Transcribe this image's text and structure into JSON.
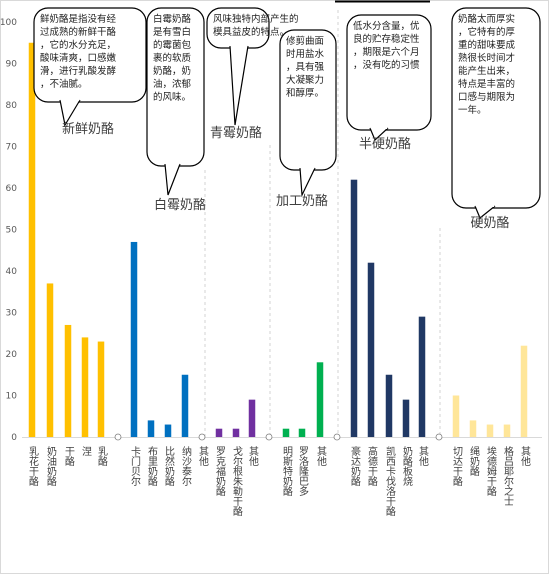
{
  "chart_data": {
    "type": "bar",
    "ylim": [
      0,
      100
    ],
    "yticks": [
      0,
      10,
      20,
      30,
      40,
      50,
      60,
      70,
      80,
      90,
      100
    ],
    "groups": [
      {
        "name": "新鲜奶酪",
        "color": "#FFC000",
        "callout": "鲜奶酪是指没有经过成熟的新鲜干酪，它的水分充足，酸味清爽，口感嫩滑，进行乳酸发酵，不油腻。",
        "categories": [
          "乳花干酪",
          "奶油奶酪",
          "干酪",
          "涅",
          "乳酪"
        ],
        "values": [
          95,
          37,
          27,
          24,
          23
        ]
      },
      {
        "name": "白霉奶酪",
        "color": "#0070C0",
        "callout": "白霉奶酪是有雪白的霉菌包裹的软质奶酪，奶油，浓郁的风味。",
        "categories": [
          "卡门贝尔",
          "布里奶酪",
          "比然奶酪",
          "纳沙泰尔",
          "其他"
        ],
        "values": [
          47,
          4,
          3,
          15,
          0
        ]
      },
      {
        "name": "青霉奶酪",
        "color": "#7030A0",
        "callout": "风味独特内部产生的模具益皮的特点。",
        "categories": [
          "罗克福奶酪",
          "戈尔根朱勒干酪",
          "其他"
        ],
        "values": [
          2,
          2,
          9
        ]
      },
      {
        "name": "加工奶酪",
        "color": "#00B050",
        "callout": "修剪曲面时用盐水，具有强大凝聚力和醇厚。",
        "categories": [
          "明斯特奶酪",
          "罗洛隆巴多",
          "其他"
        ],
        "values": [
          2,
          2,
          18
        ]
      },
      {
        "name": "半硬奶酪",
        "color": "#203864",
        "callout": "低水分含量，优良的贮存稳定性，期限是六个月，没有吃的习惯",
        "categories": [
          "豪达奶酪",
          "高德干酪",
          "凯西卡伐洛干酪",
          "奶酪板烧",
          "其他"
        ],
        "values": [
          62,
          42,
          15,
          9,
          29
        ]
      },
      {
        "name": "硬奶酪",
        "color": "#FFE699",
        "callout": "奶酪太而厚实，它特有的厚重的甜味要成熟很长时间才能产生出来，特点是丰富的口感与期限为一年。",
        "categories": [
          "切达干酪",
          "绳奶酪",
          "埃德姆干酪",
          "格吕耶尔之士",
          "其他"
        ],
        "values": [
          10,
          4,
          3,
          3,
          22
        ]
      }
    ]
  }
}
